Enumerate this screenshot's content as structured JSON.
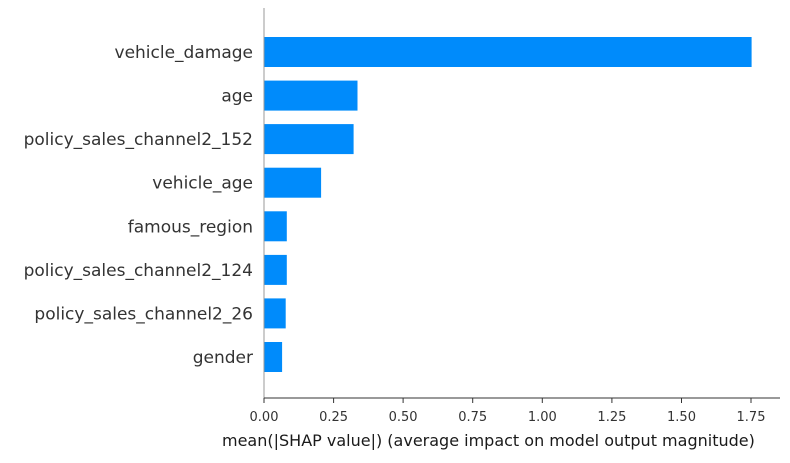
{
  "chart_data": {
    "type": "bar",
    "orientation": "horizontal",
    "categories": [
      "vehicle_damage",
      "age",
      "policy_sales_channel2_152",
      "vehicle_age",
      "famous_region",
      "policy_sales_channel2_124",
      "policy_sales_channel2_26",
      "gender"
    ],
    "values": [
      1.752,
      0.336,
      0.322,
      0.205,
      0.082,
      0.082,
      0.078,
      0.065
    ],
    "xlabel": "mean(|SHAP value|) (average impact on model output magnitude)",
    "ylabel": "",
    "title": "",
    "xlim": [
      0.0,
      1.85
    ],
    "xticks": [
      0.0,
      0.25,
      0.5,
      0.75,
      1.0,
      1.25,
      1.5,
      1.75
    ],
    "xtick_labels": [
      "0.00",
      "0.25",
      "0.50",
      "0.75",
      "1.00",
      "1.25",
      "1.50",
      "1.75"
    ],
    "grid": false,
    "bar_color": "#008bfb"
  }
}
